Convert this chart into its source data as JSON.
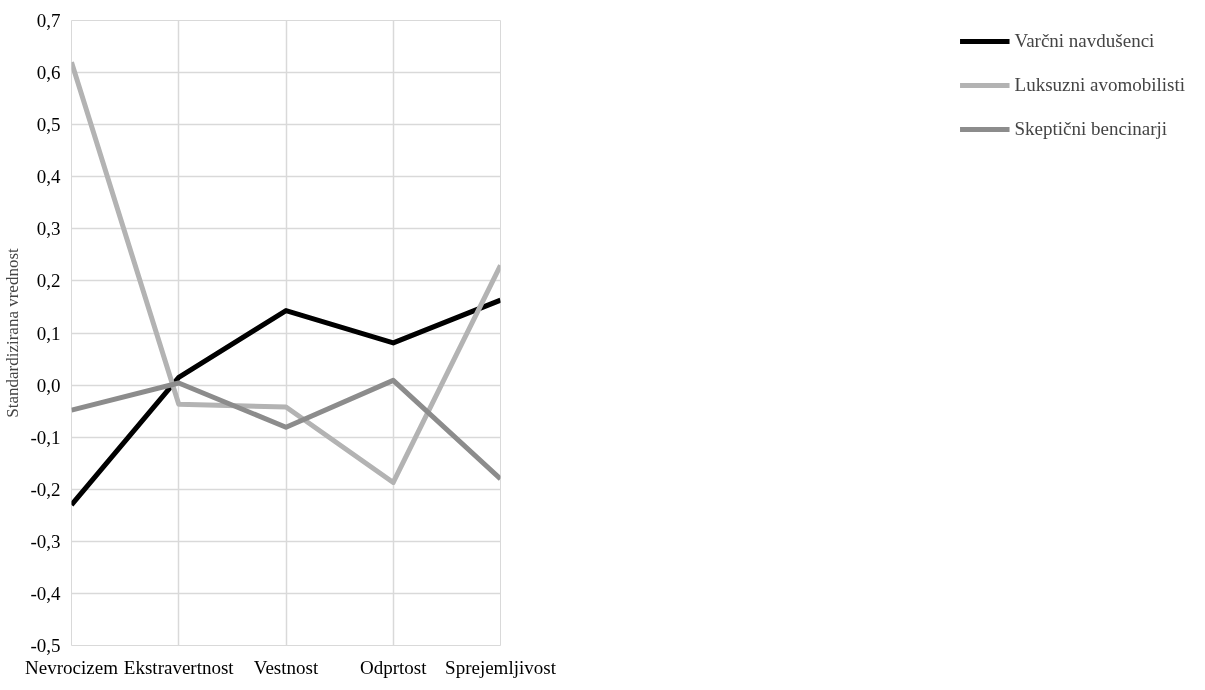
{
  "chart_data": {
    "type": "line",
    "ylabel": "Standardizirana vrednost",
    "categories": [
      "Nevrocizem",
      "Ekstravertnost",
      "Vestnost",
      "Odprtost",
      "Sprejemljivost"
    ],
    "series": [
      {
        "name": "Varčni navdušenci",
        "color": "#000000",
        "values": [
          -0.23,
          0.015,
          0.143,
          0.081,
          0.163
        ]
      },
      {
        "name": "Luksuzni avomobilisti",
        "color": "#b3b3b3",
        "values": [
          0.62,
          -0.037,
          -0.042,
          -0.187,
          0.23
        ]
      },
      {
        "name": "Skeptični bencinarji",
        "color": "#8c8c8c",
        "values": [
          -0.048,
          0.004,
          -0.081,
          0.009,
          -0.18
        ]
      }
    ],
    "ylim": [
      -0.5,
      0.7
    ],
    "yticks": [
      {
        "value": -0.5,
        "label": "-0,5"
      },
      {
        "value": -0.4,
        "label": "-0,4"
      },
      {
        "value": -0.3,
        "label": "-0,3"
      },
      {
        "value": -0.2,
        "label": "-0,2"
      },
      {
        "value": -0.1,
        "label": "-0,1"
      },
      {
        "value": 0,
        "label": "0,0"
      },
      {
        "value": 0.1,
        "label": "0,1"
      },
      {
        "value": 0.2,
        "label": "0,2"
      },
      {
        "value": 0.3,
        "label": "0,3"
      },
      {
        "value": 0.4,
        "label": "0,4"
      },
      {
        "value": 0.5,
        "label": "0,5"
      },
      {
        "value": 0.6,
        "label": "0,6"
      },
      {
        "value": 0.7,
        "label": "0,7"
      }
    ],
    "grid": true,
    "legend": "right",
    "marker": "none",
    "line_style": "solid"
  }
}
